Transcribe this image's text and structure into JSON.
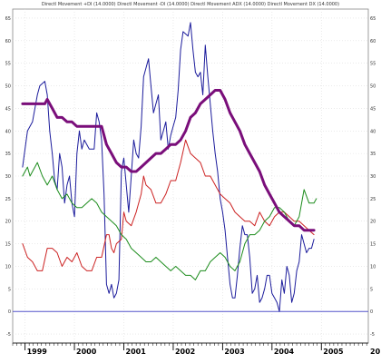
{
  "chart_data": {
    "type": "line",
    "title": "Directl Movement +DI (14.0000) Directl Movement -DI (14.0000) Directl Movement ADX (14.0000) Directl Movement DX (14.0000)",
    "grid": true,
    "x_axis": {
      "unit": "decimal year",
      "range": [
        1998.75,
        2005.95
      ],
      "year_labels": [
        {
          "year": "1999",
          "x": 1999.0
        },
        {
          "year": "2000",
          "x": 2000.0
        },
        {
          "year": "2001",
          "x": 2001.0
        },
        {
          "year": "2002",
          "x": 2002.0
        },
        {
          "year": "2003",
          "x": 2003.0
        },
        {
          "year": "2004",
          "x": 2004.0
        },
        {
          "year": "2005",
          "x": 2005.0
        },
        {
          "year": "20",
          "x": 2005.95
        }
      ]
    },
    "y_axis": {
      "range": [
        -7,
        67
      ],
      "ticks": [
        -5,
        0,
        5,
        10,
        15,
        20,
        25,
        30,
        35,
        40,
        45,
        50,
        55,
        60,
        65
      ]
    },
    "reference_line": {
      "y": 0,
      "color": "#5555cc"
    },
    "series": [
      {
        "color": "#1c1c9c",
        "width": 1,
        "points": [
          [
            1998.95,
            32
          ],
          [
            1999.0,
            36
          ],
          [
            1999.05,
            40
          ],
          [
            1999.15,
            42
          ],
          [
            1999.25,
            48
          ],
          [
            1999.3,
            50
          ],
          [
            1999.4,
            51
          ],
          [
            1999.45,
            48
          ],
          [
            1999.5,
            40
          ],
          [
            1999.55,
            35
          ],
          [
            1999.6,
            29
          ],
          [
            1999.65,
            27
          ],
          [
            1999.7,
            35
          ],
          [
            1999.75,
            32
          ],
          [
            1999.8,
            24
          ],
          [
            1999.85,
            28
          ],
          [
            1999.9,
            30
          ],
          [
            1999.95,
            24
          ],
          [
            2000.0,
            21
          ],
          [
            2000.05,
            35
          ],
          [
            2000.1,
            40
          ],
          [
            2000.15,
            36
          ],
          [
            2000.2,
            38
          ],
          [
            2000.3,
            36
          ],
          [
            2000.4,
            36
          ],
          [
            2000.45,
            44
          ],
          [
            2000.5,
            42
          ],
          [
            2000.55,
            38
          ],
          [
            2000.6,
            26
          ],
          [
            2000.65,
            6
          ],
          [
            2000.7,
            4
          ],
          [
            2000.75,
            6
          ],
          [
            2000.8,
            3
          ],
          [
            2000.85,
            4
          ],
          [
            2000.9,
            7
          ],
          [
            2000.95,
            31
          ],
          [
            2001.0,
            34
          ],
          [
            2001.05,
            28
          ],
          [
            2001.1,
            22
          ],
          [
            2001.15,
            30
          ],
          [
            2001.2,
            38
          ],
          [
            2001.25,
            35
          ],
          [
            2001.3,
            34
          ],
          [
            2001.35,
            41
          ],
          [
            2001.4,
            52
          ],
          [
            2001.5,
            56
          ],
          [
            2001.55,
            50
          ],
          [
            2001.6,
            44
          ],
          [
            2001.65,
            46
          ],
          [
            2001.7,
            48
          ],
          [
            2001.75,
            38
          ],
          [
            2001.8,
            40
          ],
          [
            2001.85,
            42
          ],
          [
            2001.9,
            36
          ],
          [
            2001.95,
            39
          ],
          [
            2002.0,
            41
          ],
          [
            2002.05,
            43
          ],
          [
            2002.1,
            49
          ],
          [
            2002.15,
            58
          ],
          [
            2002.2,
            62
          ],
          [
            2002.3,
            61
          ],
          [
            2002.35,
            64
          ],
          [
            2002.4,
            58
          ],
          [
            2002.45,
            53
          ],
          [
            2002.5,
            52
          ],
          [
            2002.55,
            53
          ],
          [
            2002.6,
            48
          ],
          [
            2002.65,
            59
          ],
          [
            2002.7,
            52
          ],
          [
            2002.75,
            46
          ],
          [
            2002.8,
            40
          ],
          [
            2002.85,
            35
          ],
          [
            2002.9,
            31
          ],
          [
            2002.95,
            25
          ],
          [
            2003.0,
            22
          ],
          [
            2003.05,
            18
          ],
          [
            2003.1,
            12
          ],
          [
            2003.15,
            6
          ],
          [
            2003.2,
            3
          ],
          [
            2003.25,
            3
          ],
          [
            2003.3,
            8
          ],
          [
            2003.35,
            14
          ],
          [
            2003.4,
            19
          ],
          [
            2003.45,
            17
          ],
          [
            2003.5,
            17
          ],
          [
            2003.55,
            12
          ],
          [
            2003.6,
            4
          ],
          [
            2003.65,
            5
          ],
          [
            2003.7,
            8
          ],
          [
            2003.75,
            2
          ],
          [
            2003.8,
            3
          ],
          [
            2003.85,
            5
          ],
          [
            2003.9,
            8
          ],
          [
            2003.95,
            8
          ],
          [
            2004.0,
            4
          ],
          [
            2004.05,
            3
          ],
          [
            2004.1,
            2
          ],
          [
            2004.15,
            0
          ],
          [
            2004.2,
            7
          ],
          [
            2004.25,
            4
          ],
          [
            2004.3,
            10
          ],
          [
            2004.35,
            8
          ],
          [
            2004.4,
            2
          ],
          [
            2004.45,
            4
          ],
          [
            2004.5,
            9
          ],
          [
            2004.55,
            11
          ],
          [
            2004.6,
            17
          ],
          [
            2004.65,
            15
          ],
          [
            2004.7,
            13
          ],
          [
            2004.75,
            14
          ],
          [
            2004.8,
            14
          ],
          [
            2004.85,
            16
          ]
        ]
      },
      {
        "color": "#cc2222",
        "width": 1,
        "points": [
          [
            1998.95,
            15
          ],
          [
            1999.05,
            12
          ],
          [
            1999.15,
            11
          ],
          [
            1999.25,
            9
          ],
          [
            1999.35,
            9
          ],
          [
            1999.45,
            14
          ],
          [
            1999.55,
            14
          ],
          [
            1999.65,
            13
          ],
          [
            1999.75,
            10
          ],
          [
            1999.85,
            12
          ],
          [
            1999.95,
            11
          ],
          [
            2000.05,
            13
          ],
          [
            2000.15,
            10
          ],
          [
            2000.25,
            9
          ],
          [
            2000.35,
            9
          ],
          [
            2000.45,
            12
          ],
          [
            2000.55,
            12
          ],
          [
            2000.65,
            17
          ],
          [
            2000.7,
            17
          ],
          [
            2000.75,
            14
          ],
          [
            2000.8,
            13
          ],
          [
            2000.85,
            15
          ],
          [
            2000.95,
            16
          ],
          [
            2001.0,
            22
          ],
          [
            2001.05,
            20
          ],
          [
            2001.15,
            19
          ],
          [
            2001.25,
            22
          ],
          [
            2001.35,
            26
          ],
          [
            2001.4,
            30
          ],
          [
            2001.45,
            28
          ],
          [
            2001.55,
            27
          ],
          [
            2001.65,
            24
          ],
          [
            2001.75,
            24
          ],
          [
            2001.85,
            26
          ],
          [
            2001.95,
            29
          ],
          [
            2002.05,
            29
          ],
          [
            2002.15,
            33
          ],
          [
            2002.25,
            38
          ],
          [
            2002.35,
            35
          ],
          [
            2002.45,
            34
          ],
          [
            2002.55,
            33
          ],
          [
            2002.65,
            30
          ],
          [
            2002.75,
            30
          ],
          [
            2002.85,
            28
          ],
          [
            2002.95,
            26
          ],
          [
            2003.05,
            25
          ],
          [
            2003.15,
            24
          ],
          [
            2003.25,
            22
          ],
          [
            2003.35,
            21
          ],
          [
            2003.45,
            20
          ],
          [
            2003.55,
            20
          ],
          [
            2003.65,
            19
          ],
          [
            2003.75,
            22
          ],
          [
            2003.85,
            20
          ],
          [
            2003.95,
            19
          ],
          [
            2004.05,
            21
          ],
          [
            2004.15,
            22
          ],
          [
            2004.25,
            22
          ],
          [
            2004.35,
            21
          ],
          [
            2004.45,
            20
          ],
          [
            2004.55,
            20
          ],
          [
            2004.65,
            19
          ],
          [
            2004.75,
            18
          ],
          [
            2004.85,
            17
          ]
        ]
      },
      {
        "color": "#1c8c1c",
        "width": 1,
        "points": [
          [
            1998.95,
            30
          ],
          [
            1999.0,
            31
          ],
          [
            1999.05,
            32
          ],
          [
            1999.1,
            30
          ],
          [
            1999.15,
            31
          ],
          [
            1999.25,
            33
          ],
          [
            1999.35,
            30
          ],
          [
            1999.45,
            28
          ],
          [
            1999.55,
            30
          ],
          [
            1999.65,
            27
          ],
          [
            1999.75,
            25
          ],
          [
            1999.85,
            26
          ],
          [
            1999.95,
            24
          ],
          [
            2000.05,
            23
          ],
          [
            2000.15,
            23
          ],
          [
            2000.25,
            24
          ],
          [
            2000.35,
            25
          ],
          [
            2000.45,
            24
          ],
          [
            2000.55,
            22
          ],
          [
            2000.65,
            21
          ],
          [
            2000.75,
            20
          ],
          [
            2000.85,
            19
          ],
          [
            2000.95,
            17
          ],
          [
            2001.05,
            16
          ],
          [
            2001.15,
            14
          ],
          [
            2001.25,
            13
          ],
          [
            2001.35,
            12
          ],
          [
            2001.45,
            11
          ],
          [
            2001.55,
            11
          ],
          [
            2001.65,
            12
          ],
          [
            2001.75,
            11
          ],
          [
            2001.85,
            10
          ],
          [
            2001.95,
            9
          ],
          [
            2002.05,
            10
          ],
          [
            2002.15,
            9
          ],
          [
            2002.25,
            8
          ],
          [
            2002.35,
            8
          ],
          [
            2002.45,
            7
          ],
          [
            2002.55,
            9
          ],
          [
            2002.65,
            9
          ],
          [
            2002.75,
            11
          ],
          [
            2002.85,
            12
          ],
          [
            2002.95,
            13
          ],
          [
            2003.05,
            12
          ],
          [
            2003.15,
            10
          ],
          [
            2003.25,
            9
          ],
          [
            2003.35,
            11
          ],
          [
            2003.45,
            15
          ],
          [
            2003.55,
            17
          ],
          [
            2003.65,
            17
          ],
          [
            2003.75,
            18
          ],
          [
            2003.85,
            20
          ],
          [
            2003.95,
            21
          ],
          [
            2004.05,
            23
          ],
          [
            2004.15,
            23
          ],
          [
            2004.25,
            22
          ],
          [
            2004.35,
            20
          ],
          [
            2004.45,
            19
          ],
          [
            2004.55,
            21
          ],
          [
            2004.65,
            27
          ],
          [
            2004.75,
            24
          ],
          [
            2004.85,
            24
          ],
          [
            2004.9,
            25
          ]
        ]
      },
      {
        "color": "#7a0e7a",
        "width": 3,
        "points": [
          [
            1998.95,
            46
          ],
          [
            1999.05,
            46
          ],
          [
            1999.2,
            46
          ],
          [
            1999.3,
            46
          ],
          [
            1999.4,
            46
          ],
          [
            1999.45,
            47
          ],
          [
            1999.55,
            45
          ],
          [
            1999.65,
            43
          ],
          [
            1999.75,
            43
          ],
          [
            1999.85,
            42
          ],
          [
            1999.95,
            42
          ],
          [
            2000.05,
            41
          ],
          [
            2000.15,
            41
          ],
          [
            2000.25,
            41
          ],
          [
            2000.35,
            41
          ],
          [
            2000.45,
            41
          ],
          [
            2000.55,
            41
          ],
          [
            2000.65,
            37
          ],
          [
            2000.75,
            35
          ],
          [
            2000.85,
            33
          ],
          [
            2000.95,
            32
          ],
          [
            2001.05,
            32
          ],
          [
            2001.15,
            31
          ],
          [
            2001.25,
            31
          ],
          [
            2001.35,
            32
          ],
          [
            2001.45,
            33
          ],
          [
            2001.55,
            34
          ],
          [
            2001.65,
            35
          ],
          [
            2001.75,
            35
          ],
          [
            2001.85,
            36
          ],
          [
            2001.95,
            37
          ],
          [
            2002.05,
            37
          ],
          [
            2002.15,
            38
          ],
          [
            2002.25,
            40
          ],
          [
            2002.35,
            43
          ],
          [
            2002.45,
            44
          ],
          [
            2002.55,
            46
          ],
          [
            2002.65,
            47
          ],
          [
            2002.75,
            48
          ],
          [
            2002.85,
            49
          ],
          [
            2002.95,
            49
          ],
          [
            2003.05,
            47
          ],
          [
            2003.15,
            44
          ],
          [
            2003.25,
            42
          ],
          [
            2003.35,
            40
          ],
          [
            2003.45,
            37
          ],
          [
            2003.55,
            35
          ],
          [
            2003.65,
            33
          ],
          [
            2003.75,
            31
          ],
          [
            2003.85,
            28
          ],
          [
            2003.95,
            26
          ],
          [
            2004.05,
            24
          ],
          [
            2004.15,
            22
          ],
          [
            2004.25,
            21
          ],
          [
            2004.35,
            20
          ],
          [
            2004.45,
            19
          ],
          [
            2004.55,
            19
          ],
          [
            2004.65,
            18
          ],
          [
            2004.75,
            18
          ],
          [
            2004.85,
            18
          ]
        ]
      }
    ]
  }
}
